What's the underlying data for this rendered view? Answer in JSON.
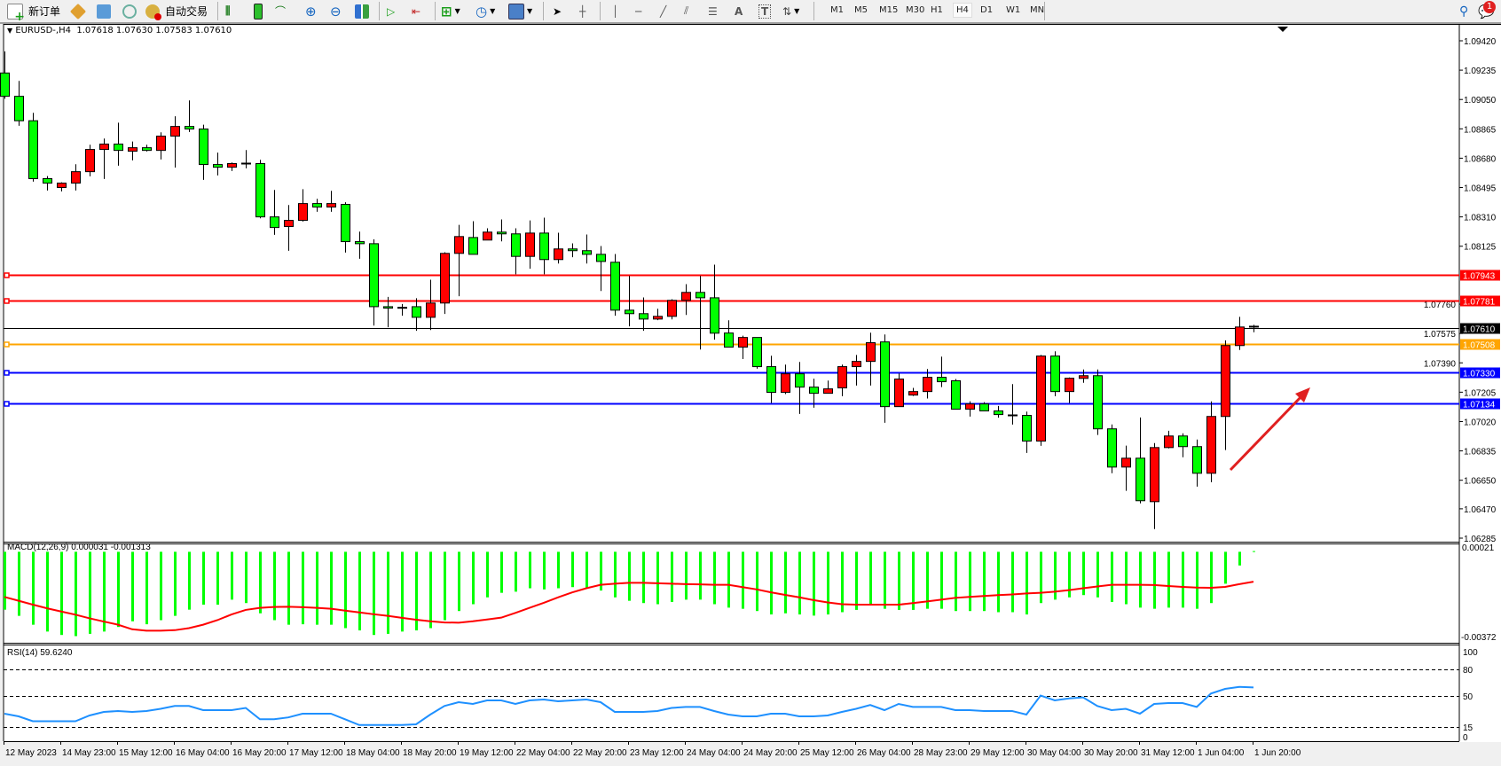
{
  "toolbar": {
    "new_order": "新订单",
    "auto_trading": "自动交易",
    "periods": [
      "M1",
      "M5",
      "M15",
      "M30",
      "H1",
      "H4",
      "D1",
      "W1",
      "MN"
    ],
    "active_period": "H4",
    "notification_count": "1"
  },
  "chart": {
    "symbol_label": "EURUSD-,H4",
    "ohlc_label": "1.07618 1.07630 1.07583 1.07610",
    "colors": {
      "bull": "#ff0000",
      "bear": "#00ff00",
      "bid_line": "#000000"
    },
    "price_axis": {
      "min": 1.06285,
      "max": 1.0942,
      "ticks": [
        "1.09420",
        "1.09235",
        "1.09050",
        "1.08865",
        "1.08680",
        "1.08495",
        "1.08310",
        "1.08125",
        "1.07760",
        "1.07575",
        "1.07390",
        "1.07205",
        "1.07020",
        "1.06835",
        "1.06650",
        "1.06470",
        "1.06285"
      ]
    },
    "hlines": [
      {
        "price": "1.07943",
        "color": "#ff0000"
      },
      {
        "price": "1.07781",
        "color": "#ff0000"
      },
      {
        "price": "1.07610",
        "color": "#000000"
      },
      {
        "price": "1.07508",
        "color": "#ffa500"
      },
      {
        "price": "1.07330",
        "color": "#0000ff"
      },
      {
        "price": "1.07134",
        "color": "#0000ff"
      }
    ],
    "candles_ohlc": [
      [
        1.09217,
        1.09353,
        1.09055,
        1.0907
      ],
      [
        1.0907,
        1.09167,
        1.08884,
        1.08916
      ],
      [
        1.08916,
        1.08966,
        1.08532,
        1.08551
      ],
      [
        1.08551,
        1.08567,
        1.08476,
        1.08523
      ],
      [
        1.08495,
        1.08528,
        1.08471,
        1.08523
      ],
      [
        1.08523,
        1.08642,
        1.08476,
        1.08595
      ],
      [
        1.08595,
        1.08765,
        1.08566,
        1.08735
      ],
      [
        1.08735,
        1.08804,
        1.08549,
        1.08769
      ],
      [
        1.08769,
        1.08904,
        1.08633,
        1.08729
      ],
      [
        1.08724,
        1.08785,
        1.08666,
        1.08746
      ],
      [
        1.08746,
        1.08765,
        1.08722,
        1.08729
      ],
      [
        1.08729,
        1.08843,
        1.08672,
        1.08819
      ],
      [
        1.08819,
        1.08944,
        1.08621,
        1.0888
      ],
      [
        1.0888,
        1.09044,
        1.08845,
        1.08864
      ],
      [
        1.08864,
        1.08891,
        1.08543,
        1.0864
      ],
      [
        1.0864,
        1.08715,
        1.08571,
        1.08623
      ],
      [
        1.08623,
        1.08653,
        1.08599,
        1.08646
      ],
      [
        1.08646,
        1.08731,
        1.08616,
        1.08646
      ],
      [
        1.08646,
        1.0867,
        1.08301,
        1.0831
      ],
      [
        1.0831,
        1.0848,
        1.08197,
        1.08243
      ],
      [
        1.08249,
        1.08385,
        1.08096,
        1.08288
      ],
      [
        1.08288,
        1.08485,
        1.08281,
        1.08394
      ],
      [
        1.08394,
        1.08424,
        1.08342,
        1.08372
      ],
      [
        1.08372,
        1.08474,
        1.08342,
        1.08394
      ],
      [
        1.08389,
        1.08402,
        1.08085,
        1.08154
      ],
      [
        1.08154,
        1.08217,
        1.08046,
        1.08141
      ],
      [
        1.08141,
        1.08169,
        1.07625,
        1.07744
      ],
      [
        1.07744,
        1.07806,
        1.07614,
        1.07735
      ],
      [
        1.07737,
        1.07761,
        1.07687,
        1.07737
      ],
      [
        1.07744,
        1.07797,
        1.07592,
        1.07677
      ],
      [
        1.07677,
        1.07914,
        1.07597,
        1.07767
      ],
      [
        1.07767,
        1.08087,
        1.07698,
        1.0808
      ],
      [
        1.0808,
        1.0826,
        1.0781,
        1.08186
      ],
      [
        1.0818,
        1.08283,
        1.08074,
        1.08074
      ],
      [
        1.08164,
        1.08238,
        1.08164,
        1.08214
      ],
      [
        1.08214,
        1.08294,
        1.08156,
        1.08203
      ],
      [
        1.08203,
        1.08238,
        1.07948,
        1.08061
      ],
      [
        1.08061,
        1.08288,
        1.07983,
        1.08208
      ],
      [
        1.08208,
        1.08305,
        1.07948,
        1.08041
      ],
      [
        1.08041,
        1.0821,
        1.08016,
        1.08108
      ],
      [
        1.08108,
        1.08143,
        1.08056,
        1.08097
      ],
      [
        1.08097,
        1.08199,
        1.08016,
        1.08074
      ],
      [
        1.08074,
        1.08126,
        1.07843,
        1.08029
      ],
      [
        1.08024,
        1.08076,
        1.07687,
        1.07722
      ],
      [
        1.07722,
        1.07938,
        1.0762,
        1.077
      ],
      [
        1.077,
        1.07802,
        1.07592,
        1.07666
      ],
      [
        1.07666,
        1.07731,
        1.07659,
        1.07683
      ],
      [
        1.07683,
        1.07791,
        1.07664,
        1.07784
      ],
      [
        1.07784,
        1.07886,
        1.07692,
        1.07834
      ],
      [
        1.07834,
        1.07938,
        1.07474,
        1.078
      ],
      [
        1.078,
        1.08009,
        1.07536,
        1.07577
      ],
      [
        1.07578,
        1.07658,
        1.07489,
        1.07489
      ],
      [
        1.07489,
        1.07561,
        1.07414,
        1.0755
      ],
      [
        1.0755,
        1.0755,
        1.07353,
        1.07366
      ],
      [
        1.07366,
        1.07435,
        1.07137,
        1.07204
      ],
      [
        1.07204,
        1.07379,
        1.07193,
        1.07321
      ],
      [
        1.07321,
        1.07396,
        1.07068,
        1.07237
      ],
      [
        1.07237,
        1.0729,
        1.07107,
        1.07198
      ],
      [
        1.07198,
        1.07278,
        1.07198,
        1.07226
      ],
      [
        1.07232,
        1.07379,
        1.0718,
        1.07366
      ],
      [
        1.07366,
        1.0744,
        1.07247,
        1.07399
      ],
      [
        1.07399,
        1.0758,
        1.07247,
        1.07517
      ],
      [
        1.07522,
        1.07569,
        1.07012,
        1.07114
      ],
      [
        1.07114,
        1.07323,
        1.07114,
        1.07288
      ],
      [
        1.07187,
        1.07232,
        1.07181,
        1.07209
      ],
      [
        1.07209,
        1.07351,
        1.07165,
        1.07299
      ],
      [
        1.07299,
        1.07429,
        1.07237,
        1.07271
      ],
      [
        1.07277,
        1.07288,
        1.07098,
        1.07098
      ],
      [
        1.07098,
        1.07148,
        1.07051,
        1.07131
      ],
      [
        1.07131,
        1.07142,
        1.07087,
        1.07087
      ],
      [
        1.07087,
        1.07118,
        1.07044,
        1.07064
      ],
      [
        1.07059,
        1.07256,
        1.07001,
        1.07059
      ],
      [
        1.07059,
        1.07083,
        1.06822,
        1.06897
      ],
      [
        1.06897,
        1.0744,
        1.06867,
        1.07433
      ],
      [
        1.07433,
        1.07463,
        1.0718,
        1.07209
      ],
      [
        1.07209,
        1.07298,
        1.07137,
        1.07293
      ],
      [
        1.07292,
        1.07348,
        1.07264,
        1.07309
      ],
      [
        1.07309,
        1.07348,
        1.06935,
        1.06974
      ],
      [
        1.06974,
        1.07002,
        1.06694,
        1.06733
      ],
      [
        1.06733,
        1.06868,
        1.06583,
        1.06789
      ],
      [
        1.06789,
        1.07046,
        1.06504,
        1.06521
      ],
      [
        1.06515,
        1.06884,
        1.06342,
        1.06856
      ],
      [
        1.06856,
        1.06962,
        1.06851,
        1.06929
      ],
      [
        1.06929,
        1.06946,
        1.06795,
        1.06862
      ],
      [
        1.06862,
        1.06907,
        1.0661,
        1.06694
      ],
      [
        1.06694,
        1.07147,
        1.06638,
        1.07052
      ],
      [
        1.07052,
        1.07532,
        1.0684,
        1.07499
      ],
      [
        1.07499,
        1.0768,
        1.07471,
        1.07616
      ],
      [
        1.07618,
        1.0763,
        1.07583,
        1.0761
      ]
    ],
    "time_labels": [
      "12 May 2023",
      "14 May 23:00",
      "15 May 12:00",
      "16 May 04:00",
      "16 May 20:00",
      "17 May 12:00",
      "18 May 04:00",
      "18 May 20:00",
      "19 May 12:00",
      "22 May 04:00",
      "22 May 20:00",
      "23 May 12:00",
      "24 May 04:00",
      "24 May 20:00",
      "25 May 12:00",
      "26 May 04:00",
      "28 May 23:00",
      "29 May 12:00",
      "30 May 04:00",
      "30 May 20:00",
      "31 May 12:00",
      "1 Jun 04:00",
      "1 Jun 20:00"
    ]
  },
  "macd": {
    "label": "MACD(12,26,9) 0.000031 -0.001313",
    "axis_max": "0.00021",
    "axis_min": "-0.00372",
    "colors": {
      "main": "#00ff00",
      "signal": "#ff0000"
    },
    "main": [
      -0.00254,
      -0.00281,
      -0.0032,
      -0.0035,
      -0.00365,
      -0.0037,
      -0.0036,
      -0.0035,
      -0.0033,
      -0.00305,
      -0.00318,
      -0.003,
      -0.00281,
      -0.00254,
      -0.00232,
      -0.00232,
      -0.0021,
      -0.00225,
      -0.0027,
      -0.003,
      -0.0032,
      -0.00318,
      -0.0032,
      -0.0032,
      -0.00335,
      -0.00345,
      -0.00365,
      -0.0036,
      -0.0035,
      -0.00345,
      -0.00335,
      -0.003,
      -0.0026,
      -0.0023,
      -0.002,
      -0.0018,
      -0.00175,
      -0.0016,
      -0.00165,
      -0.0016,
      -0.00155,
      -0.0016,
      -0.0017,
      -0.002,
      -0.00215,
      -0.00225,
      -0.0023,
      -0.0022,
      -0.0021,
      -0.0021,
      -0.0023,
      -0.00245,
      -0.0025,
      -0.0026,
      -0.00275,
      -0.0027,
      -0.00275,
      -0.0028,
      -0.00275,
      -0.00265,
      -0.00255,
      -0.00235,
      -0.0025,
      -0.00255,
      -0.00255,
      -0.0025,
      -0.0025,
      -0.0026,
      -0.0026,
      -0.0026,
      -0.00265,
      -0.00265,
      -0.00275,
      -0.00225,
      -0.0021,
      -0.002,
      -0.0019,
      -0.002,
      -0.0022,
      -0.0023,
      -0.00245,
      -0.0025,
      -0.00245,
      -0.00245,
      -0.0025,
      -0.00225,
      -0.0014,
      -0.0006,
      3.1e-05
    ],
    "signal": [
      -0.00198,
      -0.00215,
      -0.00232,
      -0.00248,
      -0.00262,
      -0.00276,
      -0.00292,
      -0.00306,
      -0.0032,
      -0.0034,
      -0.00346,
      -0.00346,
      -0.00344,
      -0.00335,
      -0.0032,
      -0.003,
      -0.00275,
      -0.00255,
      -0.00246,
      -0.00242,
      -0.00241,
      -0.00243,
      -0.00246,
      -0.0025,
      -0.00258,
      -0.00266,
      -0.00274,
      -0.00281,
      -0.0029,
      -0.00298,
      -0.00305,
      -0.0031,
      -0.00311,
      -0.00305,
      -0.00297,
      -0.00289,
      -0.00268,
      -0.00246,
      -0.00224,
      -0.002,
      -0.00178,
      -0.0016,
      -0.00145,
      -0.0014,
      -0.00136,
      -0.00136,
      -0.00138,
      -0.0014,
      -0.00142,
      -0.00143,
      -0.00145,
      -0.00145,
      -0.00155,
      -0.00165,
      -0.00178,
      -0.00189,
      -0.002,
      -0.00212,
      -0.00222,
      -0.0023,
      -0.00232,
      -0.00232,
      -0.00232,
      -0.00232,
      -0.00225,
      -0.00218,
      -0.0021,
      -0.00202,
      -0.00198,
      -0.00194,
      -0.0019,
      -0.00187,
      -0.00183,
      -0.0018,
      -0.00175,
      -0.00168,
      -0.0016,
      -0.00152,
      -0.00145,
      -0.00145,
      -0.00145,
      -0.00146,
      -0.0015,
      -0.00154,
      -0.00157,
      -0.00158,
      -0.00154,
      -0.00142,
      -0.001313
    ]
  },
  "rsi": {
    "label": "RSI(14) 59.6240",
    "axis_ticks": [
      "100",
      "80",
      "50",
      "15",
      "0"
    ],
    "levels": [
      80,
      50,
      15
    ],
    "color": "#1e90ff",
    "values": [
      30,
      27,
      21.5,
      21.5,
      21.5,
      21.5,
      28,
      32,
      33,
      32,
      33,
      35.5,
      38.7,
      38.7,
      34,
      34,
      34,
      36.5,
      23.7,
      23.7,
      25.8,
      30,
      30,
      30,
      23.7,
      17.2,
      17.2,
      17.2,
      17.2,
      18,
      29,
      38.7,
      43,
      41,
      45,
      45,
      41,
      45,
      46,
      44,
      45,
      46,
      43,
      32,
      32,
      32,
      33,
      36.5,
      37.6,
      37.6,
      33,
      29,
      27,
      27,
      30,
      30,
      27,
      27,
      28,
      32,
      35.5,
      39.8,
      34,
      41,
      37.6,
      37.6,
      37.6,
      34,
      34,
      33,
      33,
      33,
      29,
      50.5,
      45,
      47.3,
      48.4,
      38.7,
      34,
      35.5,
      30,
      41,
      42,
      42,
      37.6,
      52.7,
      58,
      60.2,
      59.624
    ]
  }
}
